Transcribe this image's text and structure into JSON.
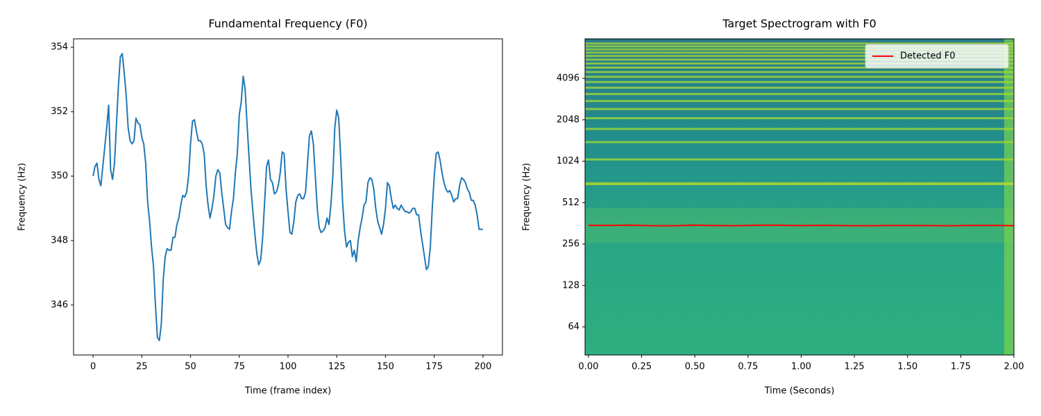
{
  "chart_data": [
    {
      "type": "line",
      "title": "Fundamental Frequency (F0)",
      "xlabel": "Time (frame index)",
      "ylabel": "Frequency (Hz)",
      "color": "#1f77b4",
      "x": [
        0,
        1,
        2,
        3,
        4,
        5,
        6,
        7,
        8,
        9,
        10,
        11,
        12,
        13,
        14,
        15,
        16,
        17,
        18,
        19,
        20,
        21,
        22,
        23,
        24,
        25,
        26,
        27,
        28,
        29,
        30,
        31,
        32,
        33,
        34,
        35,
        36,
        37,
        38,
        39,
        40,
        41,
        42,
        43,
        44,
        45,
        46,
        47,
        48,
        49,
        50,
        51,
        52,
        53,
        54,
        55,
        56,
        57,
        58,
        59,
        60,
        61,
        62,
        63,
        64,
        65,
        66,
        67,
        68,
        69,
        70,
        71,
        72,
        73,
        74,
        75,
        76,
        77,
        78,
        79,
        80,
        81,
        82,
        83,
        84,
        85,
        86,
        87,
        88,
        89,
        90,
        91,
        92,
        93,
        94,
        95,
        96,
        97,
        98,
        99,
        100,
        101,
        102,
        103,
        104,
        105,
        106,
        107,
        108,
        109,
        110,
        111,
        112,
        113,
        114,
        115,
        116,
        117,
        118,
        119,
        120,
        121,
        122,
        123,
        124,
        125,
        126,
        127,
        128,
        129,
        130,
        131,
        132,
        133,
        134,
        135,
        136,
        137,
        138,
        139,
        140,
        141,
        142,
        143,
        144,
        145,
        146,
        147,
        148,
        149,
        150,
        151,
        152,
        153,
        154,
        155,
        156,
        157,
        158,
        159,
        160,
        161,
        162,
        163,
        164,
        165,
        166,
        167,
        168,
        169,
        170,
        171,
        172,
        173,
        174,
        175,
        176,
        177,
        178,
        179,
        180,
        181,
        182,
        183,
        184,
        185,
        186,
        187,
        188,
        189,
        190,
        191,
        192,
        193,
        194,
        195,
        196,
        197,
        198,
        199,
        200
      ],
      "values": [
        350.0,
        350.3,
        350.4,
        349.9,
        349.7,
        350.3,
        350.9,
        351.5,
        352.2,
        350.2,
        349.9,
        350.4,
        351.6,
        352.8,
        353.7,
        353.8,
        353.2,
        352.5,
        351.5,
        351.1,
        351.0,
        351.1,
        351.8,
        351.65,
        351.6,
        351.2,
        351.0,
        350.4,
        349.2,
        348.6,
        347.8,
        347.2,
        346.0,
        345.0,
        344.9,
        345.4,
        346.8,
        347.5,
        347.75,
        347.7,
        347.7,
        348.1,
        348.1,
        348.5,
        348.7,
        349.1,
        349.4,
        349.35,
        349.5,
        350.0,
        351.0,
        351.7,
        351.75,
        351.4,
        351.1,
        351.1,
        351.0,
        350.7,
        349.7,
        349.1,
        348.7,
        349.0,
        349.4,
        350.0,
        350.2,
        350.1,
        349.5,
        349.0,
        348.5,
        348.4,
        348.35,
        348.9,
        349.3,
        350.1,
        350.7,
        351.9,
        352.3,
        353.1,
        352.7,
        351.6,
        350.6,
        349.6,
        348.9,
        348.2,
        347.6,
        347.25,
        347.4,
        348.1,
        349.2,
        350.3,
        350.5,
        349.9,
        349.8,
        349.45,
        349.5,
        349.7,
        350.1,
        350.75,
        350.7,
        349.6,
        348.9,
        348.25,
        348.2,
        348.6,
        349.2,
        349.4,
        349.45,
        349.3,
        349.3,
        349.5,
        350.4,
        351.25,
        351.4,
        351.0,
        350.0,
        349.0,
        348.4,
        348.25,
        348.3,
        348.4,
        348.7,
        348.5,
        349.1,
        350.0,
        351.5,
        352.05,
        351.8,
        350.6,
        349.2,
        348.3,
        347.8,
        347.95,
        348.0,
        347.5,
        347.7,
        347.35,
        348.0,
        348.4,
        348.7,
        349.1,
        349.2,
        349.8,
        349.95,
        349.9,
        349.6,
        349.0,
        348.6,
        348.4,
        348.2,
        348.5,
        349.0,
        349.8,
        349.7,
        349.3,
        349.0,
        349.1,
        349.0,
        348.95,
        349.1,
        349.0,
        348.9,
        348.9,
        348.85,
        348.9,
        349.0,
        349.0,
        348.8,
        348.8,
        348.3,
        347.9,
        347.5,
        347.1,
        347.2,
        347.8,
        349.0,
        350.0,
        350.7,
        350.75,
        350.5,
        350.1,
        349.8,
        349.6,
        349.5,
        349.55,
        349.4,
        349.2,
        349.3,
        349.3,
        349.7,
        349.95,
        349.9,
        349.8,
        349.6,
        349.5,
        349.25,
        349.25,
        349.1,
        348.8,
        348.35,
        348.35,
        348.35
      ],
      "xlim": [
        -10,
        210
      ],
      "xticks": [
        0,
        25,
        50,
        75,
        100,
        125,
        150,
        175,
        200
      ],
      "ylim": [
        344.45,
        354.26
      ],
      "yticks": [
        346,
        348,
        350,
        352,
        354
      ],
      "grid": false
    },
    {
      "type": "spectrogram",
      "title": "Target Spectrogram with F0",
      "xlabel": "Time (Seconds)",
      "ylabel": "Frequency (Hz)",
      "yscale": "log",
      "x": [
        0.0,
        0.1,
        0.2,
        0.3,
        0.4,
        0.5,
        0.6,
        0.7,
        0.8,
        0.9,
        1.0,
        1.1,
        1.2,
        1.3,
        1.4,
        1.5,
        1.6,
        1.7,
        1.8,
        1.9,
        2.0
      ],
      "series": [
        {
          "name": "Detected F0",
          "color": "#ff0000",
          "values": [
            350.0,
            349.9,
            351.0,
            347.8,
            347.7,
            351.0,
            348.7,
            348.35,
            350.6,
            350.5,
            348.9,
            350.4,
            348.7,
            347.8,
            349.2,
            349.0,
            348.9,
            347.5,
            349.8,
            349.9,
            348.35
          ]
        }
      ],
      "xlim": [
        -0.016,
        2.0
      ],
      "xticks": [
        {
          "value": 0,
          "label": "0.00"
        },
        {
          "value": 0.25,
          "label": "0.25"
        },
        {
          "value": 0.5,
          "label": "0.50"
        },
        {
          "value": 0.75,
          "label": "0.75"
        },
        {
          "value": 1,
          "label": "1.00"
        },
        {
          "value": 1.25,
          "label": "1.25"
        },
        {
          "value": 1.5,
          "label": "1.50"
        },
        {
          "value": 1.75,
          "label": "1.75"
        },
        {
          "value": 2,
          "label": "2.00"
        }
      ],
      "ylim": [
        40,
        7940
      ],
      "yticks": [
        64,
        128,
        256,
        512,
        1024,
        2048,
        4096
      ],
      "legend": "upper right",
      "grid": false
    }
  ]
}
